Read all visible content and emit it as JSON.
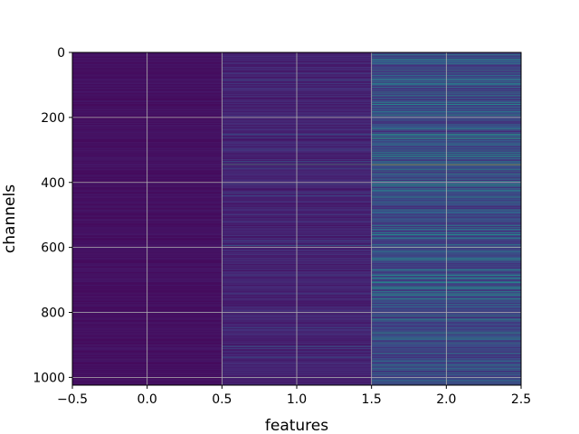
{
  "chart_data": {
    "type": "heatmap",
    "title": "",
    "xlabel": "features",
    "ylabel": "channels",
    "x_categories": [
      0,
      1,
      2
    ],
    "xlim": [
      -0.5,
      2.5
    ],
    "ylim": [
      1024,
      0
    ],
    "y_inverted": true,
    "n_rows": 1024,
    "grid": true,
    "colormap": "viridis",
    "x_ticks": [
      "−0.5",
      "0.0",
      "0.5",
      "1.0",
      "1.5",
      "2.0",
      "2.5"
    ],
    "y_ticks": [
      "0",
      "200",
      "400",
      "600",
      "800",
      "1000"
    ],
    "x_tick_values": [
      -0.5,
      0.0,
      0.5,
      1.0,
      1.5,
      2.0,
      2.5
    ],
    "y_tick_values": [
      0,
      200,
      400,
      600,
      800,
      1000
    ],
    "value_range": [
      0,
      1
    ],
    "column_baseline": [
      0.03,
      0.06,
      0.12
    ],
    "notable_rows": [
      {
        "row": 85,
        "values": [
          0.08,
          0.35,
          0.55
        ]
      },
      {
        "row": 95,
        "values": [
          0.06,
          0.22,
          0.5
        ]
      },
      {
        "row": 228,
        "values": [
          0.05,
          0.18,
          0.4
        ]
      },
      {
        "row": 252,
        "values": [
          0.07,
          0.3,
          0.6
        ]
      },
      {
        "row": 262,
        "values": [
          0.06,
          0.25,
          0.62
        ]
      },
      {
        "row": 345,
        "values": [
          0.1,
          0.75,
          0.85
        ]
      },
      {
        "row": 595,
        "values": [
          0.08,
          0.35,
          0.45
        ]
      },
      {
        "row": 668,
        "values": [
          0.07,
          0.2,
          0.35
        ]
      },
      {
        "row": 820,
        "values": [
          0.06,
          0.22,
          0.4
        ]
      },
      {
        "row": 848,
        "values": [
          0.07,
          0.3,
          0.3
        ]
      },
      {
        "row": 985,
        "values": [
          0.08,
          0.25,
          0.5
        ]
      },
      {
        "row": 1000,
        "values": [
          0.06,
          0.2,
          0.35
        ]
      }
    ]
  }
}
